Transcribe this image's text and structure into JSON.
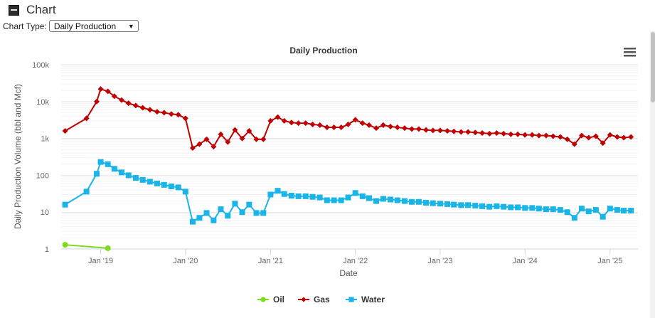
{
  "section": {
    "title": "Chart"
  },
  "controls": {
    "chart_type_label": "Chart Type:",
    "chart_type_value": "Daily Production"
  },
  "menu_icon": "hamburger-menu-icon",
  "chart_data": {
    "type": "line",
    "title": "Daily Production",
    "xlabel": "Date",
    "ylabel": "Daily Production Volume (bbl and Mcf)",
    "y_scale": "log",
    "ylim": [
      1,
      100000
    ],
    "xlim": [
      "2018-07-15",
      "2025-05-01"
    ],
    "y_ticks": [
      1,
      10,
      100,
      1000,
      10000,
      100000
    ],
    "y_tick_labels": [
      "1",
      "10",
      "100",
      "1k",
      "10k",
      "100k"
    ],
    "x_ticks": [
      "2019-01-01",
      "2020-01-01",
      "2021-01-01",
      "2022-01-01",
      "2023-01-01",
      "2024-01-01",
      "2025-01-01"
    ],
    "x_tick_labels": [
      "Jan '19",
      "Jan '20",
      "Jan '21",
      "Jan '22",
      "Jan '23",
      "Jan '24",
      "Jan '25"
    ],
    "grid": true,
    "legend_position": "bottom-center",
    "series": [
      {
        "name": "Oil",
        "color": "#7cdb1a",
        "marker": "circle",
        "x": [
          "2018-08-01",
          "2019-02-01"
        ],
        "y": [
          1.3,
          1.05
        ]
      },
      {
        "name": "Gas",
        "color": "#c00000",
        "marker": "diamond",
        "x": [
          "2018-08-01",
          "2018-11-01",
          "2018-12-15",
          "2019-01-01",
          "2019-02-01",
          "2019-03-01",
          "2019-04-01",
          "2019-05-01",
          "2019-06-01",
          "2019-07-01",
          "2019-08-01",
          "2019-09-01",
          "2019-10-01",
          "2019-11-01",
          "2019-12-01",
          "2020-01-01",
          "2020-02-01",
          "2020-03-01",
          "2020-04-01",
          "2020-05-01",
          "2020-06-01",
          "2020-07-01",
          "2020-08-01",
          "2020-09-01",
          "2020-10-01",
          "2020-11-01",
          "2020-12-01",
          "2021-01-01",
          "2021-02-01",
          "2021-03-01",
          "2021-04-01",
          "2021-05-01",
          "2021-06-01",
          "2021-07-01",
          "2021-08-01",
          "2021-09-01",
          "2021-10-01",
          "2021-11-01",
          "2021-12-01",
          "2022-01-01",
          "2022-02-01",
          "2022-03-01",
          "2022-04-01",
          "2022-05-01",
          "2022-06-01",
          "2022-07-01",
          "2022-08-01",
          "2022-09-01",
          "2022-10-01",
          "2022-11-01",
          "2022-12-01",
          "2023-01-01",
          "2023-02-01",
          "2023-03-01",
          "2023-04-01",
          "2023-05-01",
          "2023-06-01",
          "2023-07-01",
          "2023-08-01",
          "2023-09-01",
          "2023-10-01",
          "2023-11-01",
          "2023-12-01",
          "2024-01-01",
          "2024-02-01",
          "2024-03-01",
          "2024-04-01",
          "2024-05-01",
          "2024-06-01",
          "2024-07-01",
          "2024-08-01",
          "2024-09-01",
          "2024-10-01",
          "2024-11-01",
          "2024-12-01",
          "2025-01-01",
          "2025-02-01",
          "2025-03-01",
          "2025-04-01"
        ],
        "y": [
          1600,
          3500,
          10000,
          22000,
          19000,
          14000,
          11000,
          9000,
          7800,
          6800,
          6000,
          5300,
          5000,
          4600,
          4400,
          3500,
          550,
          700,
          950,
          600,
          1300,
          800,
          1700,
          1000,
          1600,
          950,
          950,
          3000,
          3800,
          3000,
          2700,
          2600,
          2600,
          2400,
          2300,
          2000,
          2000,
          2000,
          2400,
          3200,
          2600,
          2300,
          1900,
          2300,
          2100,
          2000,
          1900,
          1800,
          1800,
          1700,
          1650,
          1650,
          1600,
          1550,
          1500,
          1500,
          1450,
          1400,
          1350,
          1400,
          1350,
          1300,
          1300,
          1250,
          1250,
          1200,
          1200,
          1150,
          1100,
          950,
          700,
          1200,
          1050,
          1150,
          750,
          1250,
          1100,
          1050,
          1100
        ]
      },
      {
        "name": "Water",
        "color": "#1ab5e8",
        "marker": "square",
        "x": [
          "2018-08-01",
          "2018-11-01",
          "2018-12-15",
          "2019-01-01",
          "2019-02-01",
          "2019-03-01",
          "2019-04-01",
          "2019-05-01",
          "2019-06-01",
          "2019-07-01",
          "2019-08-01",
          "2019-09-01",
          "2019-10-01",
          "2019-11-01",
          "2019-12-01",
          "2020-01-01",
          "2020-02-01",
          "2020-03-01",
          "2020-04-01",
          "2020-05-01",
          "2020-06-01",
          "2020-07-01",
          "2020-08-01",
          "2020-09-01",
          "2020-10-01",
          "2020-11-01",
          "2020-12-01",
          "2021-01-01",
          "2021-02-01",
          "2021-03-01",
          "2021-04-01",
          "2021-05-01",
          "2021-06-01",
          "2021-07-01",
          "2021-08-01",
          "2021-09-01",
          "2021-10-01",
          "2021-11-01",
          "2021-12-01",
          "2022-01-01",
          "2022-02-01",
          "2022-03-01",
          "2022-04-01",
          "2022-05-01",
          "2022-06-01",
          "2022-07-01",
          "2022-08-01",
          "2022-09-01",
          "2022-10-01",
          "2022-11-01",
          "2022-12-01",
          "2023-01-01",
          "2023-02-01",
          "2023-03-01",
          "2023-04-01",
          "2023-05-01",
          "2023-06-01",
          "2023-07-01",
          "2023-08-01",
          "2023-09-01",
          "2023-10-01",
          "2023-11-01",
          "2023-12-01",
          "2024-01-01",
          "2024-02-01",
          "2024-03-01",
          "2024-04-01",
          "2024-05-01",
          "2024-06-01",
          "2024-07-01",
          "2024-08-01",
          "2024-09-01",
          "2024-10-01",
          "2024-11-01",
          "2024-12-01",
          "2025-01-01",
          "2025-02-01",
          "2025-03-01",
          "2025-04-01"
        ],
        "y": [
          16,
          36,
          110,
          230,
          200,
          150,
          120,
          100,
          85,
          75,
          67,
          60,
          55,
          50,
          47,
          36,
          5.5,
          7,
          9.5,
          6,
          12,
          8,
          17,
          10,
          16,
          9.5,
          9.5,
          30,
          38,
          31,
          28,
          27,
          27,
          26,
          25,
          21,
          21,
          21,
          25,
          33,
          27,
          24,
          20,
          23,
          22,
          21,
          20,
          19,
          19,
          18,
          17.5,
          17,
          16.5,
          16,
          15.5,
          15.5,
          15,
          14.5,
          14,
          14.5,
          14,
          13.5,
          13.5,
          13,
          13,
          12.5,
          12,
          12,
          11.5,
          10,
          7,
          12.5,
          10.5,
          11.5,
          7.5,
          12.5,
          11.5,
          11,
          11
        ]
      }
    ]
  }
}
